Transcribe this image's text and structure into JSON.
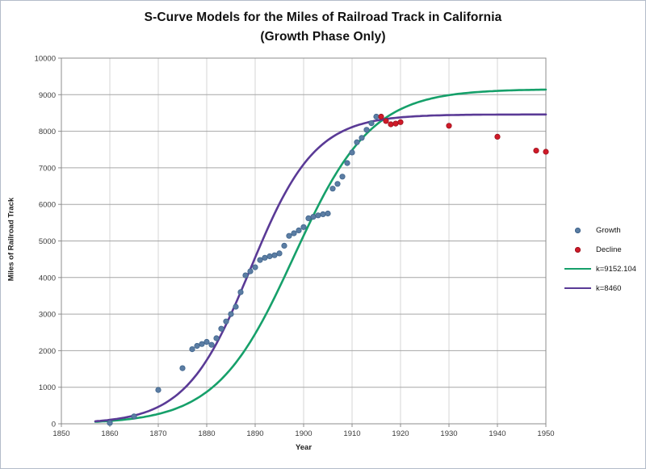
{
  "window": {
    "background": "#ffffff",
    "border_color": "#b3bcc9"
  },
  "chart_data": {
    "type": "scatter",
    "title_line1": "S-Curve Models for the Miles of Railroad Track in California",
    "title_line2": "(Growth Phase Only)",
    "xlabel": "Year",
    "ylabel": "Miles of Railroad Track",
    "xlim": [
      1850,
      1950
    ],
    "ylim": [
      0,
      10000
    ],
    "x_ticks": [
      1850,
      1860,
      1870,
      1880,
      1890,
      1900,
      1910,
      1920,
      1930,
      1940,
      1950
    ],
    "y_ticks": [
      0,
      1000,
      2000,
      3000,
      4000,
      5000,
      6000,
      7000,
      8000,
      9000,
      10000
    ],
    "grid": true,
    "legend_position": "right",
    "colors": {
      "grid_horizontal": "#a6a6a6",
      "grid_vertical": "#d6d6d6",
      "axis": "#8c8c8c",
      "title": "#111111"
    },
    "series": [
      {
        "name": "Growth",
        "type": "scatter",
        "color": "#5b7da3",
        "edge": "#3f648c",
        "points": [
          [
            1860,
            25
          ],
          [
            1865,
            200
          ],
          [
            1870,
            925
          ],
          [
            1875,
            1520
          ],
          [
            1877,
            2040
          ],
          [
            1878,
            2130
          ],
          [
            1879,
            2180
          ],
          [
            1880,
            2240
          ],
          [
            1881,
            2160
          ],
          [
            1882,
            2340
          ],
          [
            1883,
            2600
          ],
          [
            1884,
            2800
          ],
          [
            1885,
            3000
          ],
          [
            1886,
            3200
          ],
          [
            1887,
            3600
          ],
          [
            1888,
            4060
          ],
          [
            1889,
            4170
          ],
          [
            1890,
            4280
          ],
          [
            1891,
            4480
          ],
          [
            1892,
            4540
          ],
          [
            1893,
            4580
          ],
          [
            1894,
            4610
          ],
          [
            1895,
            4660
          ],
          [
            1896,
            4870
          ],
          [
            1897,
            5140
          ],
          [
            1898,
            5210
          ],
          [
            1899,
            5290
          ],
          [
            1900,
            5380
          ],
          [
            1901,
            5620
          ],
          [
            1902,
            5660
          ],
          [
            1903,
            5700
          ],
          [
            1904,
            5730
          ],
          [
            1905,
            5750
          ],
          [
            1906,
            6430
          ],
          [
            1907,
            6560
          ],
          [
            1908,
            6760
          ],
          [
            1909,
            7130
          ],
          [
            1910,
            7420
          ],
          [
            1911,
            7700
          ],
          [
            1912,
            7820
          ],
          [
            1913,
            8040
          ],
          [
            1914,
            8220
          ],
          [
            1915,
            8400
          ]
        ]
      },
      {
        "name": "Decline",
        "type": "scatter",
        "color": "#d01a28",
        "edge": "#9c1420",
        "points": [
          [
            1916,
            8400
          ],
          [
            1917,
            8280
          ],
          [
            1918,
            8190
          ],
          [
            1919,
            8210
          ],
          [
            1920,
            8250
          ],
          [
            1930,
            8150
          ],
          [
            1940,
            7850
          ],
          [
            1948,
            7470
          ],
          [
            1950,
            7440
          ]
        ]
      },
      {
        "name": "k=9152.104",
        "type": "logistic",
        "color": "#16a06a",
        "k": 9152.104,
        "r": 0.125,
        "t0": 1898,
        "t_start": 1857,
        "t_end": 1950
      },
      {
        "name": "k=8460",
        "type": "logistic",
        "color": "#5a3a96",
        "k": 8460,
        "r": 0.15,
        "t0": 1889,
        "t_start": 1857,
        "t_end": 1950
      }
    ]
  }
}
